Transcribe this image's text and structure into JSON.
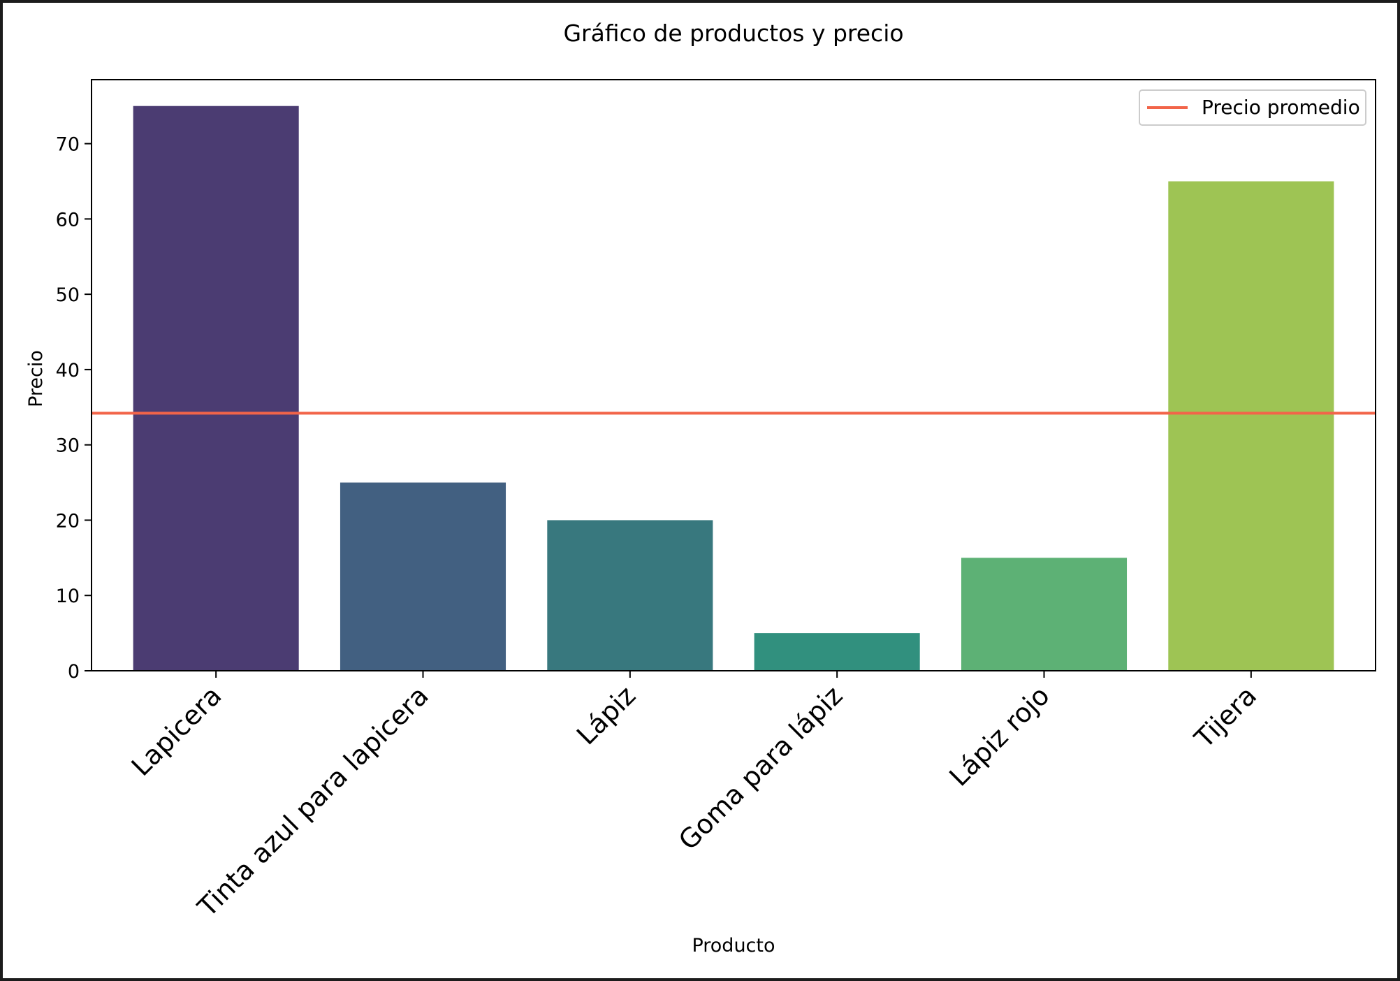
{
  "chart_data": {
    "type": "bar",
    "title": "Gráfico de productos y precio",
    "xlabel": "Producto",
    "ylabel": "Precio",
    "categories": [
      "Lapicera",
      "Tinta azul para lapicera",
      "Lápiz",
      "Goma para lápiz",
      "Lápiz rojo",
      "Tijera"
    ],
    "values": [
      75,
      25,
      20,
      5,
      15,
      65
    ],
    "colors": [
      "#4b3c72",
      "#426081",
      "#38787e",
      "#31907e",
      "#5db175",
      "#9ec454"
    ],
    "ylim": [
      0,
      78.5
    ],
    "yticks": [
      0,
      10,
      20,
      30,
      40,
      50,
      60,
      70
    ],
    "reference_line": {
      "label": "Precio promedio",
      "value": 34.2,
      "color": "#f26449"
    },
    "legend": {
      "position": "top-right",
      "entries": [
        "Precio promedio"
      ]
    },
    "grid": false
  }
}
